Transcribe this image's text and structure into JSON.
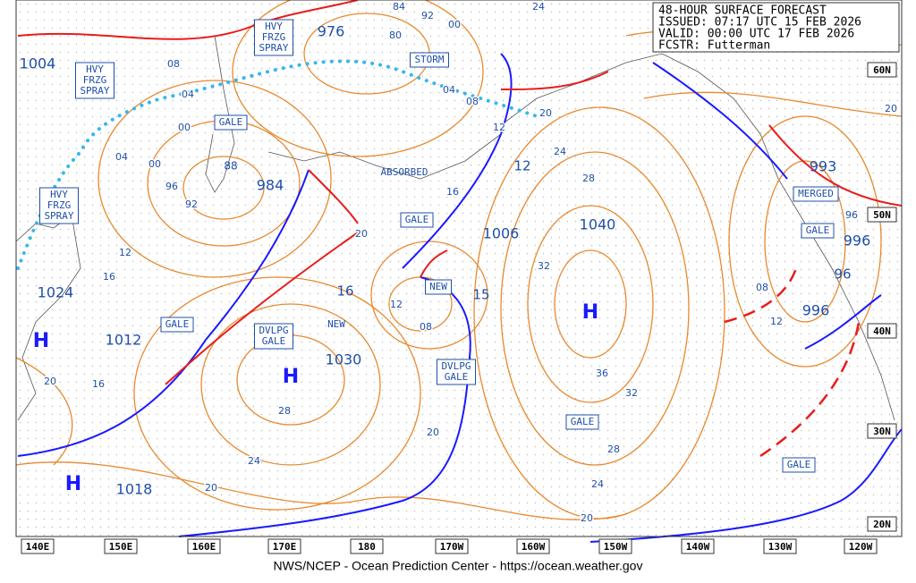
{
  "header": {
    "lines": [
      "48-HOUR SURFACE FORECAST",
      "ISSUED:  07:17 UTC 15 FEB 2026",
      "VALID:   00:00 UTC 17 FEB 2026",
      "FCSTR:   Futterman"
    ]
  },
  "footer": "NWS/NCEP - Ocean Prediction Center - https://ocean.weather.gov",
  "longitude_labels": [
    "140E",
    "150E",
    "160E",
    "170E",
    "180",
    "170W",
    "160W",
    "150W",
    "140W",
    "130W",
    "120W"
  ],
  "latitude_labels": [
    "60N",
    "50N",
    "40N",
    "30N",
    "20N"
  ],
  "pressure_labels": [
    "1004",
    "976",
    "984",
    "993",
    "996",
    "996",
    "1006",
    "1040",
    "1024",
    "1012",
    "1030",
    "1018",
    "16",
    "15",
    "12",
    "96",
    "88"
  ],
  "high_labels": [
    "H",
    "H",
    "H",
    "H"
  ],
  "boxed_labels": [
    {
      "lines": [
        "HVY",
        "FRZG",
        "SPRAY"
      ]
    },
    {
      "lines": [
        "HVY",
        "FRZG",
        "SPRAY"
      ]
    },
    {
      "lines": [
        "HVY",
        "FRZG",
        "SPRAY"
      ]
    },
    {
      "lines": [
        "GALE"
      ]
    },
    {
      "lines": [
        "GALE"
      ]
    },
    {
      "lines": [
        "GALE"
      ]
    },
    {
      "lines": [
        "GALE"
      ]
    },
    {
      "lines": [
        "GALE"
      ]
    },
    {
      "lines": [
        "GALE"
      ]
    },
    {
      "lines": [
        "STORM"
      ]
    },
    {
      "lines": [
        "DVLPG",
        "GALE"
      ]
    },
    {
      "lines": [
        "DVLPG",
        "GALE"
      ]
    },
    {
      "lines": [
        "NEW"
      ]
    },
    {
      "lines": [
        "MERGED"
      ]
    }
  ],
  "plain_labels": [
    "ABSORBED",
    "NEW"
  ],
  "isobar_labels": [
    "08",
    "04",
    "00",
    "04",
    "00",
    "96",
    "92",
    "12",
    "16",
    "20",
    "16",
    "20",
    "24",
    "28",
    "20",
    "20",
    "16",
    "12",
    "08",
    "04",
    "00",
    "92",
    "84",
    "80",
    "24",
    "20",
    "24",
    "28",
    "32",
    "36",
    "32",
    "28",
    "24",
    "20",
    "20",
    "96",
    "08",
    "12",
    "12",
    "08"
  ]
}
